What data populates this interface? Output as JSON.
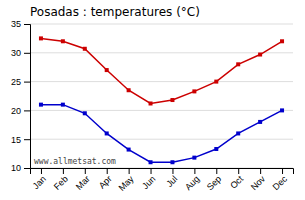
{
  "chart_data": {
    "type": "line",
    "title": "Posadas : temperatures (°C)",
    "categories": [
      "Jan",
      "Feb",
      "Mar",
      "Apr",
      "May",
      "Jun",
      "Jul",
      "Aug",
      "Sep",
      "Oct",
      "Nov",
      "Dec"
    ],
    "series": [
      {
        "color": "#cc0000",
        "marker": "square",
        "values": [
          32.5,
          32.0,
          30.7,
          27.0,
          23.5,
          21.2,
          21.8,
          23.3,
          25.0,
          28.0,
          29.7,
          32.0
        ]
      },
      {
        "color": "#0000cc",
        "marker": "square",
        "values": [
          21.0,
          21.0,
          19.5,
          16.0,
          13.2,
          11.0,
          11.0,
          11.8,
          13.3,
          16.0,
          18.0,
          20.0
        ]
      }
    ],
    "ylim": [
      10,
      35
    ],
    "yticks": [
      10,
      15,
      20,
      25,
      30,
      35
    ],
    "grid": true,
    "annotations": [
      "www.allmetsat.com"
    ]
  }
}
